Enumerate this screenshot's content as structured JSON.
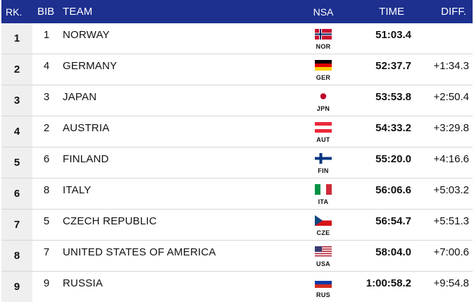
{
  "headers": {
    "rank": "RK.",
    "bib": "BIB",
    "team": "TEAM",
    "nsa": "NSA",
    "time": "TIME",
    "diff": "DIFF."
  },
  "rows": [
    {
      "rank": "1",
      "bib": "1",
      "team": "NORWAY",
      "nsa": "NOR",
      "time": "51:03.4",
      "diff": ""
    },
    {
      "rank": "2",
      "bib": "4",
      "team": "GERMANY",
      "nsa": "GER",
      "time": "52:37.7",
      "diff": "+1:34.3"
    },
    {
      "rank": "3",
      "bib": "3",
      "team": "JAPAN",
      "nsa": "JPN",
      "time": "53:53.8",
      "diff": "+2:50.4"
    },
    {
      "rank": "4",
      "bib": "2",
      "team": "AUSTRIA",
      "nsa": "AUT",
      "time": "54:33.2",
      "diff": "+3:29.8"
    },
    {
      "rank": "5",
      "bib": "6",
      "team": "FINLAND",
      "nsa": "FIN",
      "time": "55:20.0",
      "diff": "+4:16.6"
    },
    {
      "rank": "6",
      "bib": "8",
      "team": "ITALY",
      "nsa": "ITA",
      "time": "56:06.6",
      "diff": "+5:03.2"
    },
    {
      "rank": "7",
      "bib": "5",
      "team": "CZECH REPUBLIC",
      "nsa": "CZE",
      "time": "56:54.7",
      "diff": "+5:51.3"
    },
    {
      "rank": "8",
      "bib": "7",
      "team": "UNITED STATES OF AMERICA",
      "nsa": "USA",
      "time": "58:04.0",
      "diff": "+7:00.6"
    },
    {
      "rank": "9",
      "bib": "9",
      "team": "RUSSIA",
      "nsa": "RUS",
      "time": "1:00:58.2",
      "diff": "+9:54.8"
    }
  ],
  "colors": {
    "header_bg": "#1d2f8f",
    "rank_cell_bg": "#efefef"
  }
}
